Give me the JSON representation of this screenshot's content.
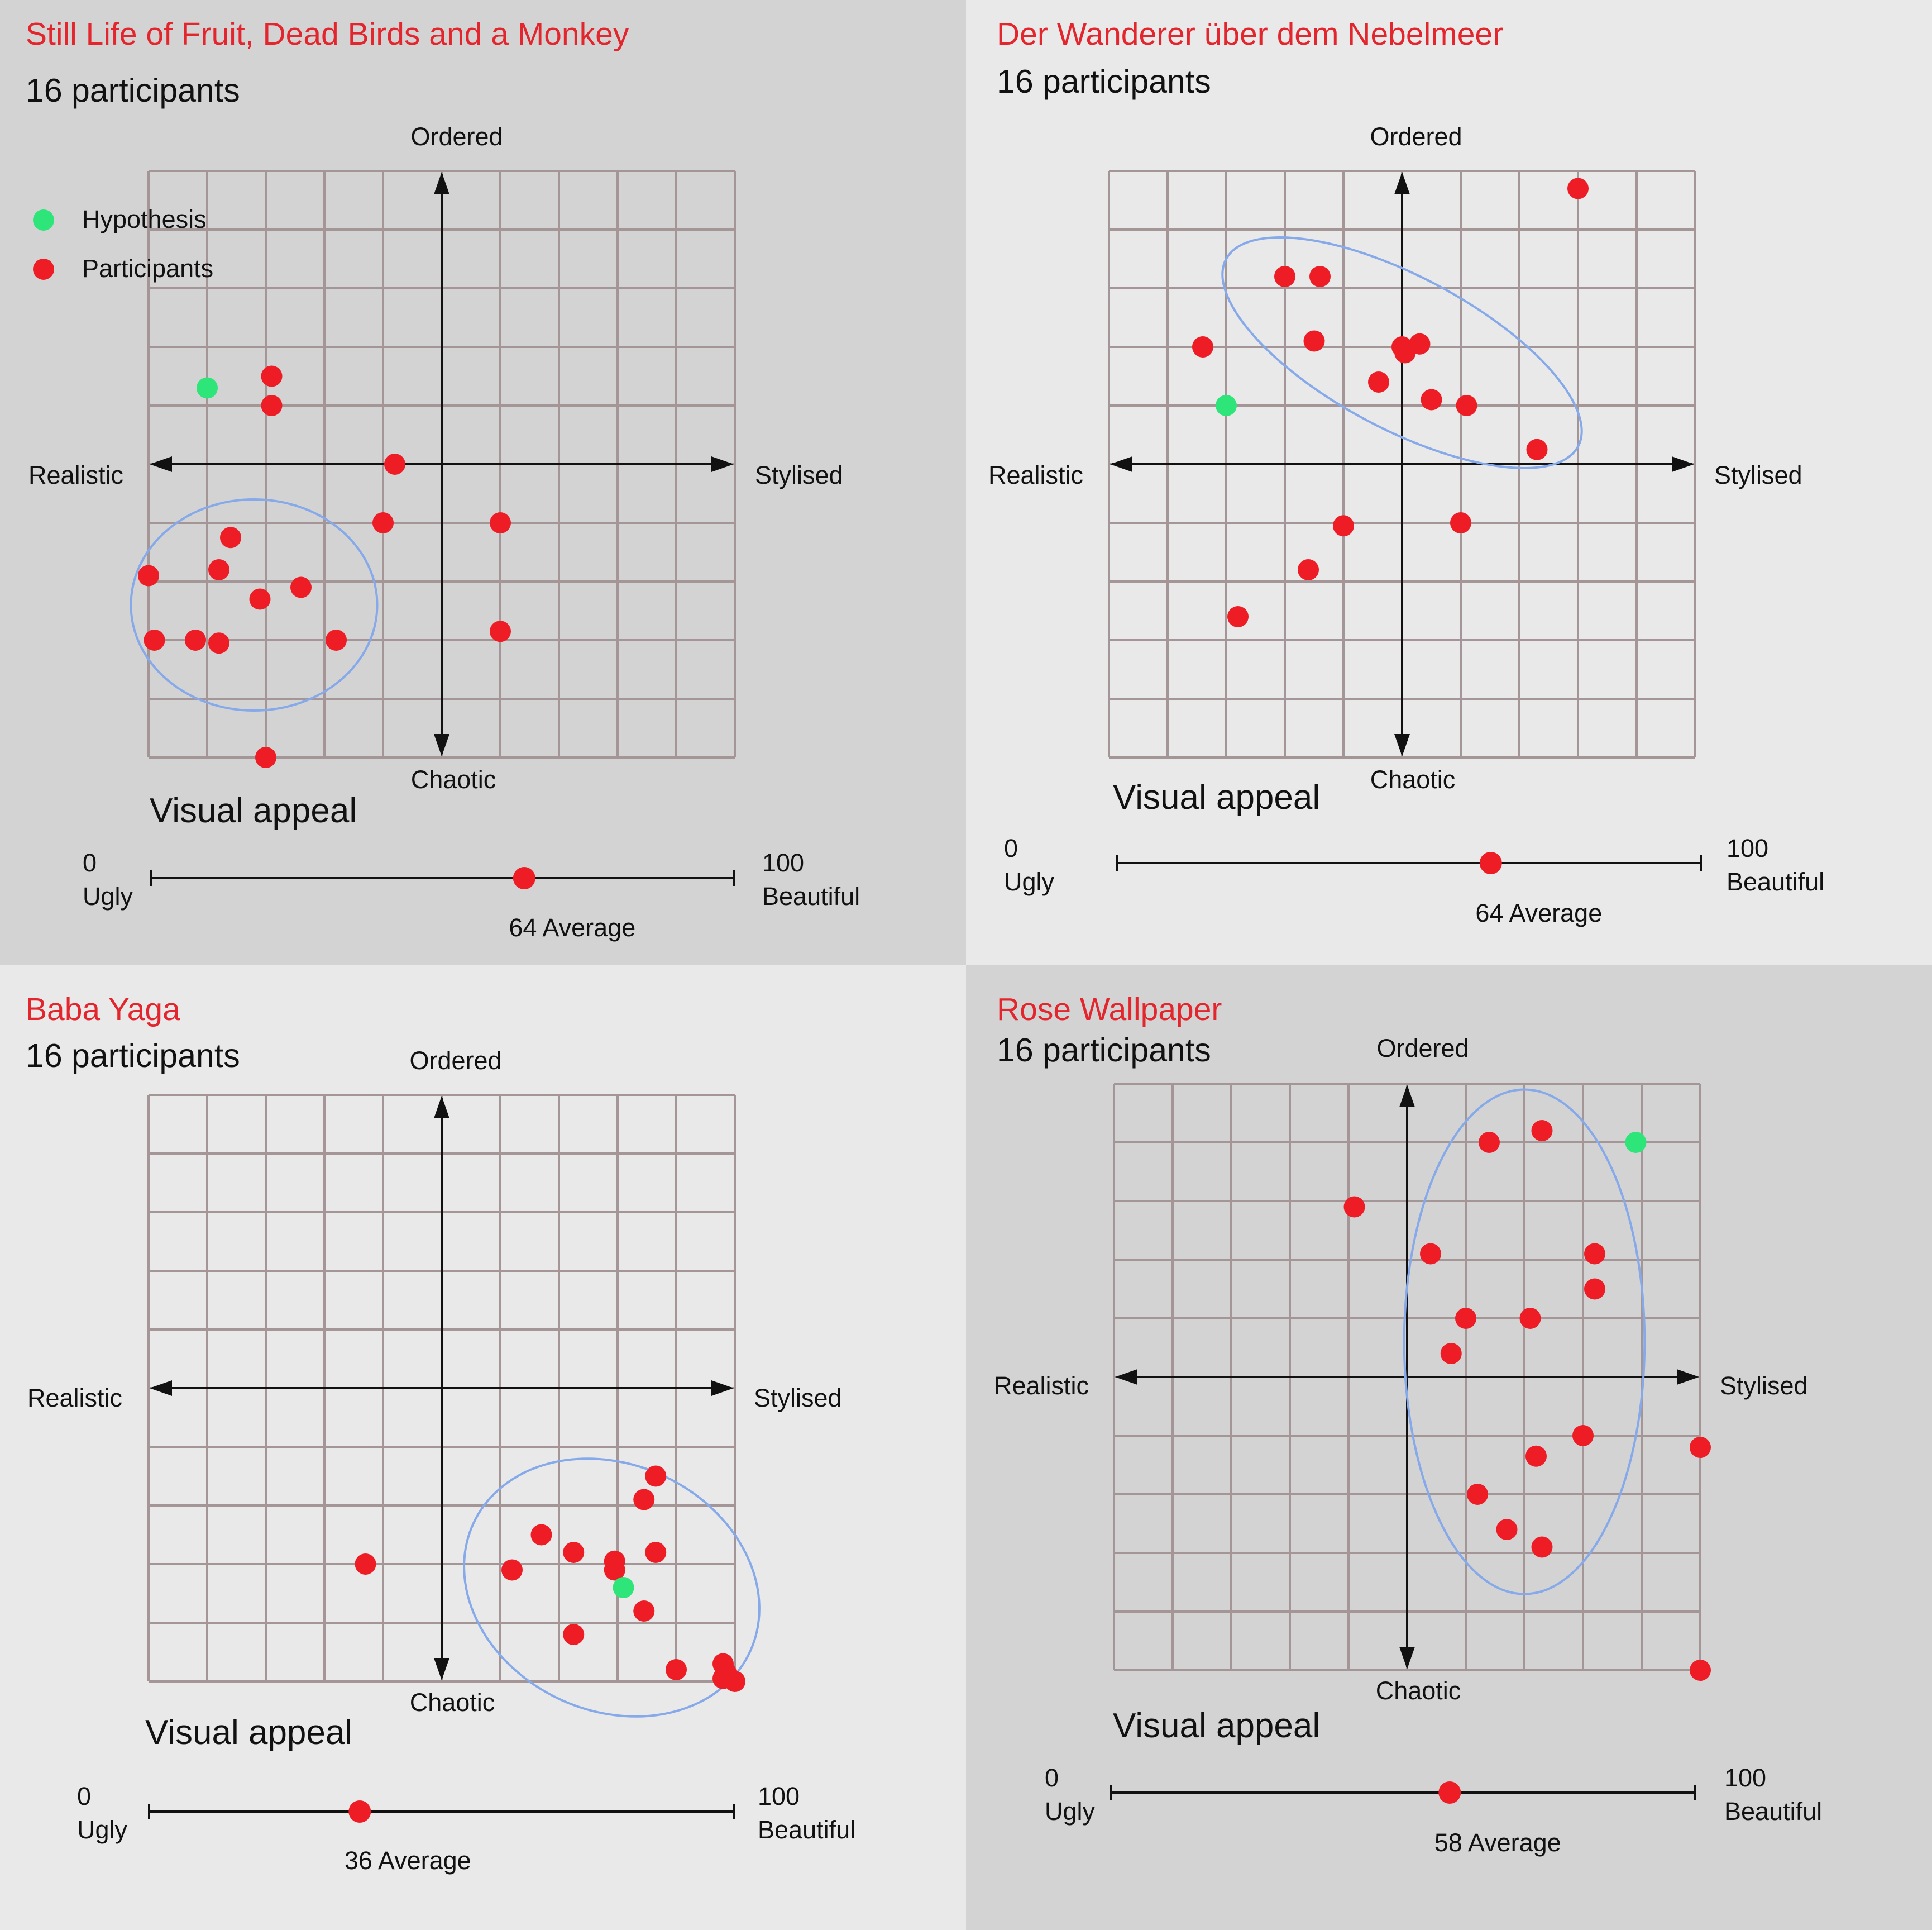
{
  "legend": {
    "hypothesis": "Hypothesis",
    "participants": "Participants"
  },
  "colors": {
    "participant": "#ee1c25",
    "hypothesis": "#2ee57a",
    "grid": "#a49696",
    "cluster": "#86a9ea",
    "title": "#e3262d",
    "bg_dark": "#d3d3d3",
    "bg_light": "#e9e9e9"
  },
  "chart_data": [
    {
      "type": "scatter",
      "title": "Still Life of Fruit, Dead Birds and a Monkey",
      "subtitle": "16 participants",
      "axes": {
        "top": "Ordered",
        "bottom": "Chaotic",
        "left": "Realistic",
        "right": "Stylised"
      },
      "xlim": [
        -5,
        5
      ],
      "ylim": [
        -5,
        5
      ],
      "grid": true,
      "hypothesis": {
        "x": -4,
        "y": 1.3
      },
      "participants": [
        {
          "x": -2.9,
          "y": 1.5
        },
        {
          "x": -2.9,
          "y": 1.0
        },
        {
          "x": -0.8,
          "y": 0.0
        },
        {
          "x": -1.0,
          "y": -1.0
        },
        {
          "x": 1.0,
          "y": -1.0
        },
        {
          "x": -3.6,
          "y": -1.25
        },
        {
          "x": -5.0,
          "y": -1.9
        },
        {
          "x": -3.8,
          "y": -1.8
        },
        {
          "x": -2.4,
          "y": -2.1
        },
        {
          "x": -3.1,
          "y": -2.3
        },
        {
          "x": -4.9,
          "y": -3.0
        },
        {
          "x": -4.2,
          "y": -3.0
        },
        {
          "x": -3.8,
          "y": -3.05
        },
        {
          "x": -1.8,
          "y": -3.0
        },
        {
          "x": 1.0,
          "y": -2.85
        },
        {
          "x": -3.0,
          "y": -5.0
        }
      ],
      "cluster": {
        "cx": -3.2,
        "cy": -2.4,
        "rx": 2.1,
        "ry": 1.8,
        "rotate": 0
      },
      "visual_appeal": {
        "label": "Visual appeal",
        "min": 0,
        "max": 100,
        "min_label": "Ugly",
        "max_label": "Beautiful",
        "average": 64,
        "average_label": "64 Average"
      }
    },
    {
      "type": "scatter",
      "title": "Der Wanderer über dem Nebelmeer",
      "subtitle": "16 participants",
      "axes": {
        "top": "Ordered",
        "bottom": "Chaotic",
        "left": "Realistic",
        "right": "Stylised"
      },
      "xlim": [
        -5,
        5
      ],
      "ylim": [
        -5,
        5
      ],
      "grid": true,
      "hypothesis": {
        "x": -3,
        "y": 1.0
      },
      "participants": [
        {
          "x": 3.0,
          "y": 4.7
        },
        {
          "x": -2.0,
          "y": 3.2
        },
        {
          "x": -1.4,
          "y": 3.2
        },
        {
          "x": -3.4,
          "y": 2.0
        },
        {
          "x": -1.5,
          "y": 2.1
        },
        {
          "x": 0.0,
          "y": 2.0
        },
        {
          "x": 0.05,
          "y": 1.9
        },
        {
          "x": 0.3,
          "y": 2.05
        },
        {
          "x": -0.4,
          "y": 1.4
        },
        {
          "x": 0.5,
          "y": 1.1
        },
        {
          "x": 1.1,
          "y": 1.0
        },
        {
          "x": 2.3,
          "y": 0.25
        },
        {
          "x": -1.0,
          "y": -1.05
        },
        {
          "x": 1.0,
          "y": -1.0
        },
        {
          "x": -1.6,
          "y": -1.8
        },
        {
          "x": -2.8,
          "y": -2.6
        }
      ],
      "cluster": {
        "cx": 0.0,
        "cy": 1.9,
        "rx": 3.4,
        "ry": 1.3,
        "rotate": 28
      },
      "visual_appeal": {
        "label": "Visual appeal",
        "min": 0,
        "max": 100,
        "min_label": "Ugly",
        "max_label": "Beautiful",
        "average": 64,
        "average_label": "64 Average"
      }
    },
    {
      "type": "scatter",
      "title": "Baba Yaga",
      "subtitle": "16 participants",
      "axes": {
        "top": "Ordered",
        "bottom": "Chaotic",
        "left": "Realistic",
        "right": "Stylised"
      },
      "xlim": [
        -5,
        5
      ],
      "ylim": [
        -5,
        5
      ],
      "grid": true,
      "hypothesis": {
        "x": 3.1,
        "y": -3.4
      },
      "participants": [
        {
          "x": -1.3,
          "y": -3.0
        },
        {
          "x": 1.2,
          "y": -3.1
        },
        {
          "x": 1.7,
          "y": -2.5
        },
        {
          "x": 2.25,
          "y": -2.8
        },
        {
          "x": 2.95,
          "y": -2.95
        },
        {
          "x": 2.95,
          "y": -3.1
        },
        {
          "x": 3.65,
          "y": -2.8
        },
        {
          "x": 3.45,
          "y": -1.9
        },
        {
          "x": 3.65,
          "y": -1.5
        },
        {
          "x": 3.45,
          "y": -3.8
        },
        {
          "x": 2.25,
          "y": -4.2
        },
        {
          "x": 4.0,
          "y": -4.8
        },
        {
          "x": 4.8,
          "y": -4.7
        },
        {
          "x": 4.8,
          "y": -4.95
        },
        {
          "x": 5.0,
          "y": -5.0
        },
        {
          "x": 4.85,
          "y": -4.85
        }
      ],
      "cluster": {
        "cx": 2.9,
        "cy": -3.4,
        "rx": 2.6,
        "ry": 2.1,
        "rotate": 25
      },
      "visual_appeal": {
        "label": "Visual appeal",
        "min": 0,
        "max": 100,
        "min_label": "Ugly",
        "max_label": "Beautiful",
        "average": 36,
        "average_label": "36 Average"
      }
    },
    {
      "type": "scatter",
      "title": "Rose Wallpaper",
      "subtitle": "16 participants",
      "axes": {
        "top": "Ordered",
        "bottom": "Chaotic",
        "left": "Realistic",
        "right": "Stylised"
      },
      "xlim": [
        -5,
        5
      ],
      "ylim": [
        -5,
        5
      ],
      "grid": true,
      "hypothesis": {
        "x": 3.9,
        "y": 4.0
      },
      "participants": [
        {
          "x": 1.4,
          "y": 4.0
        },
        {
          "x": 2.3,
          "y": 4.2
        },
        {
          "x": -0.9,
          "y": 2.9
        },
        {
          "x": 0.4,
          "y": 2.1
        },
        {
          "x": 3.2,
          "y": 2.1
        },
        {
          "x": 3.2,
          "y": 1.5
        },
        {
          "x": 1.0,
          "y": 1.0
        },
        {
          "x": 2.1,
          "y": 1.0
        },
        {
          "x": 0.75,
          "y": 0.4
        },
        {
          "x": 3.0,
          "y": -1.0
        },
        {
          "x": 5.0,
          "y": -1.2
        },
        {
          "x": 2.2,
          "y": -1.35
        },
        {
          "x": 1.2,
          "y": -2.0
        },
        {
          "x": 1.7,
          "y": -2.6
        },
        {
          "x": 2.3,
          "y": -2.9
        },
        {
          "x": 5.0,
          "y": -5.0
        }
      ],
      "cluster": {
        "cx": 2.0,
        "cy": 0.6,
        "rx": 2.05,
        "ry": 4.3,
        "rotate": 0
      },
      "visual_appeal": {
        "label": "Visual appeal",
        "min": 0,
        "max": 100,
        "min_label": "Ugly",
        "max_label": "Beautiful",
        "average": 58,
        "average_label": "58 Average"
      }
    }
  ]
}
